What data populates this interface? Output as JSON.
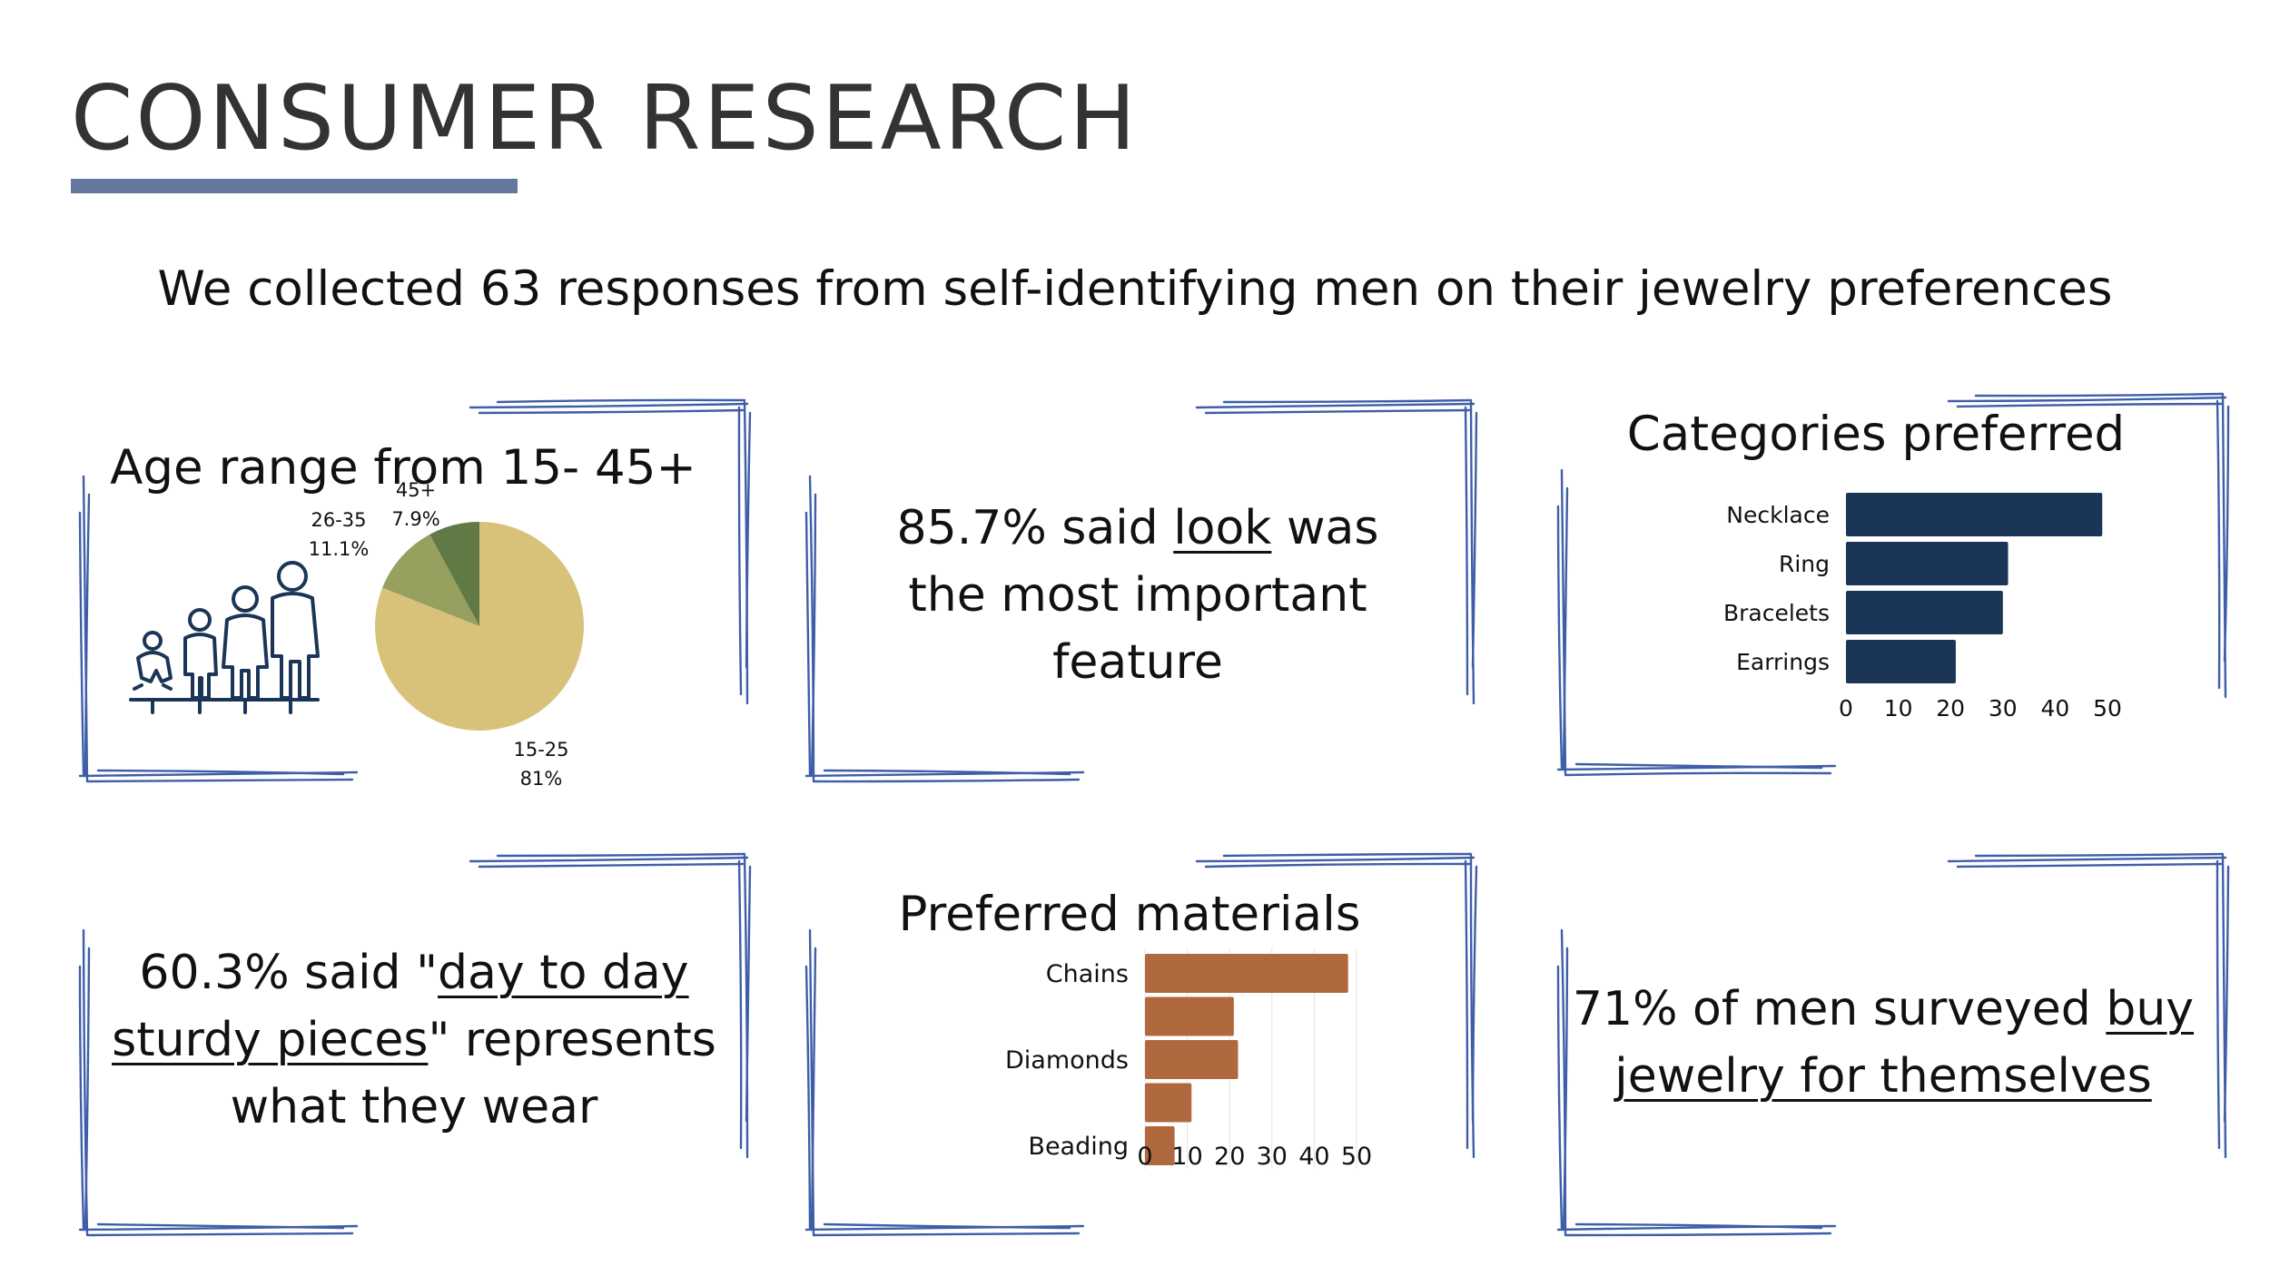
{
  "header": {
    "title": "CONSUMER RESEARCH",
    "subtitle": "We collected 63 responses from self-identifying men on their jewelry preferences"
  },
  "colors": {
    "frame_blue": "#3f5ea8",
    "title_bar": "#63779f",
    "categories_bar": "#1b3557",
    "materials_bar": "#b0683f",
    "pie_young": "#d8c27a",
    "pie_mid": "#97a05f",
    "pie_old": "#617a45"
  },
  "panels": {
    "age": {
      "title": "Age range from 15- 45+",
      "icon": "family-age-icon"
    },
    "look": {
      "line1_pre": "85.7% said ",
      "line1_link": "look",
      "line1_post": " was",
      "line2": "the most important",
      "line3": "feature"
    },
    "daily": {
      "line1_pre": "60.3% said \"",
      "line1_link": "day to day",
      "line2_link": "sturdy pieces",
      "line2_post": "\" represents",
      "line3": "what they wear"
    },
    "self": {
      "line1_pre": "71% of men surveyed ",
      "line1_link": "buy",
      "line2_link": "jewelry for themselves"
    }
  },
  "chart_data": [
    {
      "type": "pie",
      "title": "Age range from 15- 45+",
      "slices": [
        {
          "label": "15-25",
          "pct_label": "81%",
          "value": 81
        },
        {
          "label": "26-35",
          "pct_label": "11.1%",
          "value": 11.1
        },
        {
          "label": "45+",
          "pct_label": "7.9%",
          "value": 7.9
        }
      ]
    },
    {
      "type": "bar",
      "orientation": "horizontal",
      "title": "Categories preferred",
      "categories": [
        "Necklace",
        "Ring",
        "Bracelets",
        "Earrings"
      ],
      "values": [
        49,
        31,
        30,
        21
      ],
      "xlim": [
        0,
        50
      ],
      "xticks": [
        "0",
        "10",
        "20",
        "30",
        "40",
        "50"
      ],
      "grid": false
    },
    {
      "type": "bar",
      "orientation": "horizontal",
      "title": "Preferred materials",
      "categories": [
        "Chains",
        "",
        "Diamonds",
        "",
        "Beading"
      ],
      "values": [
        48,
        21,
        22,
        11,
        7
      ],
      "xlim": [
        0,
        50
      ],
      "xticks": [
        "0",
        "10",
        "20",
        "30",
        "40",
        "50"
      ],
      "grid": true
    }
  ]
}
